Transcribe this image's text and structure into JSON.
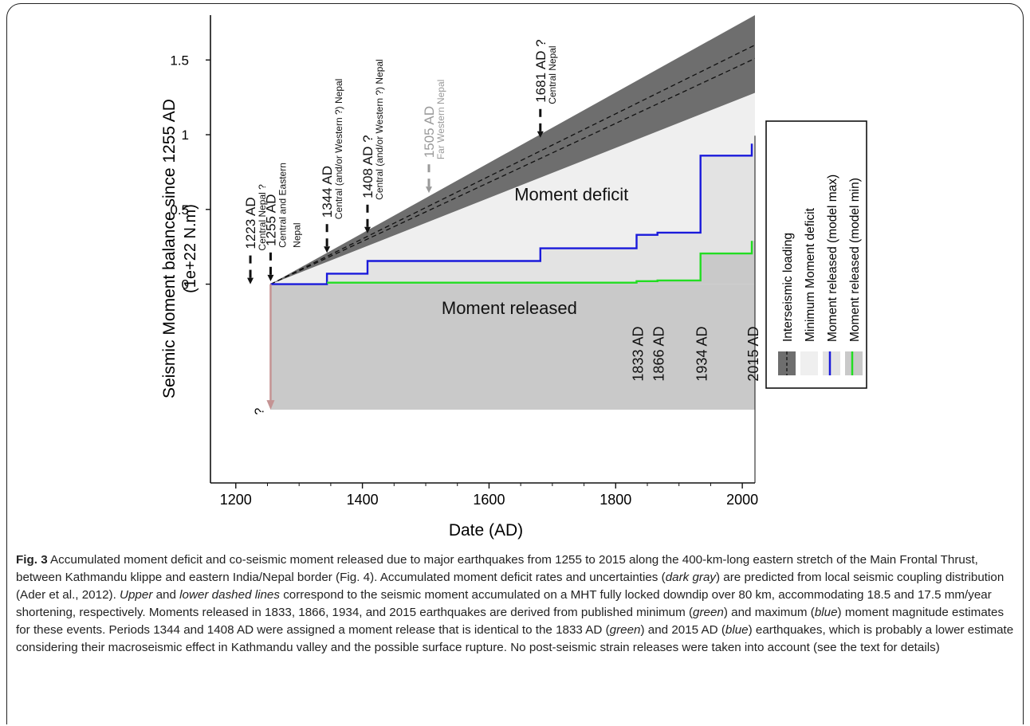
{
  "chart_data": {
    "type": "area",
    "ylabel_line1": "Seismic Moment balance since 1255 AD",
    "ylabel_line2": "(1e+22 N.m)",
    "xlabel": "Date (AD)",
    "xlim": [
      1160,
      2020
    ],
    "ylim": [
      -1.33,
      1.8
    ],
    "xticks": [
      1200,
      1400,
      1600,
      1800,
      2000
    ],
    "yticks": [
      {
        "value": 0,
        "label": "0"
      },
      {
        "value": 0.5,
        "label": "0.5"
      },
      {
        "value": 1,
        "label": "1"
      },
      {
        "value": 1.5,
        "label": "1.5"
      }
    ],
    "interseismic_band": {
      "start": [
        1255,
        0
      ],
      "upper_end": [
        2020,
        1.8
      ],
      "lower_end": [
        2020,
        1.28
      ]
    },
    "dashed_lines": [
      {
        "name": "upper",
        "points": [
          [
            1255,
            0
          ],
          [
            2020,
            1.6
          ]
        ]
      },
      {
        "name": "lower",
        "points": [
          [
            1255,
            0
          ],
          [
            2020,
            1.51
          ]
        ]
      }
    ],
    "min_deficit_upper_end": [
      2020,
      1.28
    ],
    "released_region_bottom": -0.84,
    "series": [
      {
        "name": "Moment released (model max)",
        "color": "#1a1adb",
        "x": [
          1255,
          1344,
          1344,
          1408,
          1408,
          1681,
          1681,
          1833,
          1833,
          1866,
          1866,
          1934,
          1934,
          2015,
          2015
        ],
        "y": [
          0,
          0,
          0.07,
          0.07,
          0.155,
          0.155,
          0.24,
          0.24,
          0.33,
          0.33,
          0.345,
          0.345,
          0.86,
          0.86,
          0.94
        ]
      },
      {
        "name": "Moment released (model min)",
        "color": "#22dd22",
        "x": [
          1344,
          1833,
          1833,
          1866,
          1866,
          1934,
          1934,
          2015,
          2015
        ],
        "y": [
          0.01,
          0.01,
          0.02,
          0.02,
          0.025,
          0.025,
          0.205,
          0.205,
          0.29
        ]
      }
    ],
    "arrow_down": {
      "x": 1255,
      "from": 0,
      "to": -0.84,
      "label": "?"
    },
    "region_labels": [
      {
        "text": "Moment deficit",
        "x": 1640,
        "y": 0.56
      },
      {
        "text": "Moment released",
        "x": 1525,
        "y": -0.2
      }
    ],
    "events_top": [
      {
        "year": 1223,
        "arrow_y": 0,
        "title": "1223 AD",
        "sub": "Central Nepal ?",
        "sub2": "",
        "color": "#111111"
      },
      {
        "year": 1255,
        "arrow_y": 0.02,
        "title": "1255 AD",
        "sub": "Central and Eastern",
        "sub2": "Nepal",
        "color": "#111111"
      },
      {
        "year": 1344,
        "arrow_y": 0.21,
        "title": "1344 AD",
        "sub": "Central (and/or Western ?) Nepal",
        "sub2": "",
        "color": "#111111"
      },
      {
        "year": 1408,
        "arrow_y": 0.34,
        "title": "1408 AD ?",
        "sub": "Central (and/or Western ?) Nepal",
        "sub2": "",
        "color": "#111111"
      },
      {
        "year": 1505,
        "arrow_y": 0.61,
        "title": "1505 AD",
        "sub": "Far Western  Nepal",
        "sub2": "",
        "color": "#9a9a9a"
      },
      {
        "year": 1681,
        "arrow_y": 0.98,
        "title": "1681 AD ?",
        "sub": "Central Nepal",
        "sub2": "",
        "color": "#111111"
      }
    ],
    "events_bottom": [
      {
        "year": 1833,
        "title": "1833 AD"
      },
      {
        "year": 1866,
        "title": "1866 AD"
      },
      {
        "year": 1934,
        "title": "1934 AD"
      },
      {
        "year": 2015,
        "title": "2015 AD"
      }
    ],
    "legend": {
      "placement": "right",
      "entries": [
        {
          "label": "Interseismic loading",
          "kind": "dark-dashed"
        },
        {
          "label": "Minimum Moment deficit",
          "kind": "light"
        },
        {
          "label": "Moment released (model max)",
          "kind": "blue"
        },
        {
          "label": "Moment released (model min)",
          "kind": "green"
        }
      ]
    },
    "colors": {
      "band": "#6e6e6e",
      "deficit": "#efefef",
      "released_light": "#e3e3e3",
      "released": "#c9c9c9",
      "arrow": "#c49393"
    }
  },
  "caption": {
    "fig_label": "Fig. 3",
    "t1": " Accumulated moment deficit and co-seismic moment released due to major earthquakes from 1255 to 2015 along the 400-km-long eastern stretch of the Main Frontal Thrust, between Kathmandu klippe and eastern India/Nepal border (Fig. 4). Accumulated moment deficit rates and uncertainties (",
    "i1": "dark gray",
    "t2": ") are predicted from local seismic coupling distribution (Ader et al., 2012). ",
    "i2": "Upper",
    "t3": " and ",
    "i3": "lower dashed lines",
    "t4": " correspond to the seismic moment accumulated on a MHT fully locked downdip over 80 km, accommodating 18.5 and 17.5 mm/year shortening, respectively. Moments released in 1833, 1866, 1934, and 2015 earthquakes are derived from published minimum (",
    "i4": "green",
    "t5": ") and maximum (",
    "i5": "blue",
    "t6": ") moment magnitude estimates for these events. Periods 1344 and 1408 AD were assigned a moment release that is identical to the 1833 AD (",
    "i6": "green",
    "t7": ") and 2015 AD (",
    "i7": "blue",
    "t8": ") earthquakes, which is probably a lower estimate considering their macroseismic effect in Kathmandu valley and the possible surface rupture. No post-seismic strain releases were taken into account (see the text for details)"
  }
}
